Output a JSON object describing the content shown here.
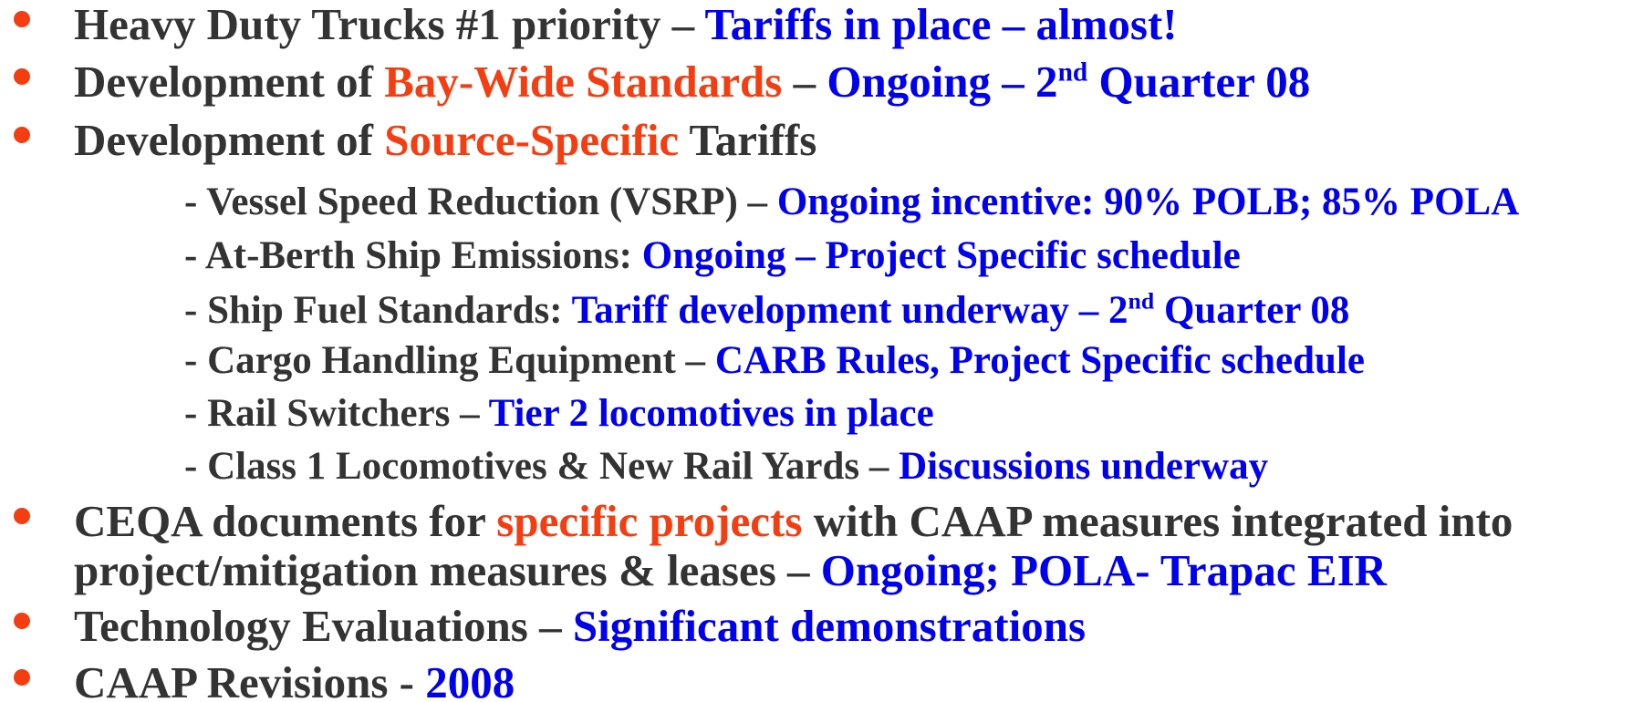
{
  "items": [
    {
      "level": 1,
      "segments": [
        {
          "text": "Heavy Duty Trucks #1 priority – ",
          "color": "#333333"
        },
        {
          "text": "Tariffs in place – almost!",
          "color": "#0000ee"
        }
      ]
    },
    {
      "level": 1,
      "segments": [
        {
          "text": "Development of ",
          "color": "#333333"
        },
        {
          "text": "Bay-Wide Standards",
          "color": "#f53d12"
        },
        {
          "text": " – ",
          "color": "#333333"
        },
        {
          "text": "Ongoing – 2",
          "color": "#0000ee"
        },
        {
          "text": "nd",
          "color": "#0000ee",
          "sup": true
        },
        {
          "text": " Quarter 08",
          "color": "#0000ee"
        }
      ]
    },
    {
      "level": 1,
      "segments": [
        {
          "text": "Development of ",
          "color": "#333333"
        },
        {
          "text": "Source-Specific",
          "color": "#f53d12"
        },
        {
          "text": " Tariffs",
          "color": "#333333"
        }
      ]
    },
    {
      "level": 2,
      "segments": [
        {
          "text": "- Vessel Speed Reduction (VSRP) – ",
          "color": "#333333"
        },
        {
          "text": "Ongoing incentive: 90% POLB; 85% POLA",
          "color": "#0000ee"
        }
      ]
    },
    {
      "level": 2,
      "segments": [
        {
          "text": "- At-Berth Ship Emissions: ",
          "color": "#333333"
        },
        {
          "text": "Ongoing – Project Specific schedule",
          "color": "#0000ee"
        }
      ]
    },
    {
      "level": 2,
      "segments": [
        {
          "text": "- Ship Fuel Standards: ",
          "color": "#333333"
        },
        {
          "text": "Tariff development underway – 2",
          "color": "#0000ee"
        },
        {
          "text": "nd",
          "color": "#0000ee",
          "sup": true
        },
        {
          "text": " Quarter 08",
          "color": "#0000ee"
        }
      ]
    },
    {
      "level": 2,
      "segments": [
        {
          "text": "- Cargo Handling Equipment – ",
          "color": "#333333"
        },
        {
          "text": "CARB Rules, Project Specific schedule",
          "color": "#0000ee"
        }
      ]
    },
    {
      "level": 2,
      "segments": [
        {
          "text": "- Rail Switchers – ",
          "color": "#333333"
        },
        {
          "text": "Tier 2 locomotives in place",
          "color": "#0000ee"
        }
      ]
    },
    {
      "level": 2,
      "segments": [
        {
          "text": "- Class 1 Locomotives & New Rail Yards – ",
          "color": "#333333"
        },
        {
          "text": "Discussions underway",
          "color": "#0000ee"
        }
      ]
    },
    {
      "level": 1,
      "segments": [
        {
          "text": "CEQA documents for ",
          "color": "#333333"
        },
        {
          "text": "specific projects",
          "color": "#f53d12"
        },
        {
          "text": " with CAAP measures integrated into project/mitigation measures & leases – ",
          "color": "#333333"
        },
        {
          "text": "Ongoing; POLA- Trapac EIR",
          "color": "#0000ee"
        }
      ]
    },
    {
      "level": 1,
      "segments": [
        {
          "text": "Technology Evaluations – ",
          "color": "#333333"
        },
        {
          "text": "Significant demonstrations",
          "color": "#0000ee"
        }
      ]
    },
    {
      "level": 1,
      "segments": [
        {
          "text": "CAAP Revisions - ",
          "color": "#333333"
        },
        {
          "text": "2008",
          "color": "#0000ee"
        }
      ]
    }
  ]
}
